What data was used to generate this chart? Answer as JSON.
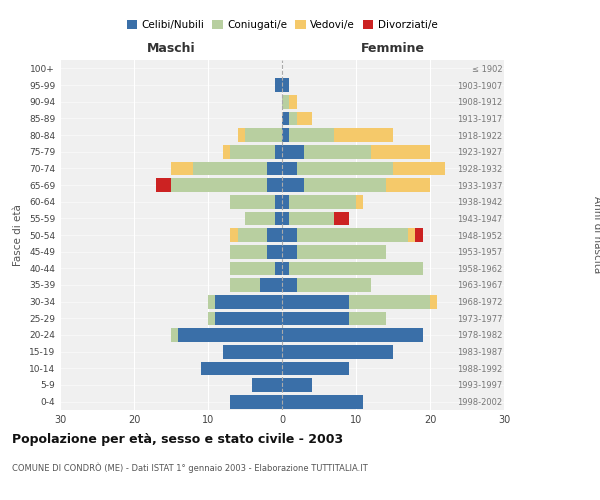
{
  "age_groups": [
    "0-4",
    "5-9",
    "10-14",
    "15-19",
    "20-24",
    "25-29",
    "30-34",
    "35-39",
    "40-44",
    "45-49",
    "50-54",
    "55-59",
    "60-64",
    "65-69",
    "70-74",
    "75-79",
    "80-84",
    "85-89",
    "90-94",
    "95-99",
    "100+"
  ],
  "birth_years": [
    "1998-2002",
    "1993-1997",
    "1988-1992",
    "1983-1987",
    "1978-1982",
    "1973-1977",
    "1968-1972",
    "1963-1967",
    "1958-1962",
    "1953-1957",
    "1948-1952",
    "1943-1947",
    "1938-1942",
    "1933-1937",
    "1928-1932",
    "1923-1927",
    "1918-1922",
    "1913-1917",
    "1908-1912",
    "1903-1907",
    "≤ 1902"
  ],
  "males": {
    "celibi": [
      7,
      4,
      11,
      8,
      14,
      9,
      9,
      3,
      1,
      2,
      2,
      1,
      1,
      2,
      2,
      1,
      0,
      0,
      0,
      1,
      0
    ],
    "coniugati": [
      0,
      0,
      0,
      0,
      1,
      1,
      1,
      4,
      6,
      5,
      4,
      4,
      6,
      13,
      10,
      6,
      5,
      0,
      0,
      0,
      0
    ],
    "vedovi": [
      0,
      0,
      0,
      0,
      0,
      0,
      0,
      0,
      0,
      0,
      1,
      0,
      0,
      0,
      3,
      1,
      1,
      0,
      0,
      0,
      0
    ],
    "divorziati": [
      0,
      0,
      0,
      0,
      0,
      0,
      0,
      0,
      0,
      0,
      0,
      0,
      0,
      2,
      0,
      0,
      0,
      0,
      0,
      0,
      0
    ]
  },
  "females": {
    "nubili": [
      11,
      4,
      9,
      15,
      19,
      9,
      9,
      2,
      1,
      2,
      2,
      1,
      1,
      3,
      2,
      3,
      1,
      1,
      0,
      1,
      0
    ],
    "coniugate": [
      0,
      0,
      0,
      0,
      0,
      5,
      11,
      10,
      18,
      12,
      15,
      6,
      9,
      11,
      13,
      9,
      6,
      1,
      1,
      0,
      0
    ],
    "vedove": [
      0,
      0,
      0,
      0,
      0,
      0,
      1,
      0,
      0,
      0,
      1,
      0,
      1,
      6,
      7,
      8,
      8,
      2,
      1,
      0,
      0
    ],
    "divorziate": [
      0,
      0,
      0,
      0,
      0,
      0,
      0,
      0,
      0,
      0,
      1,
      2,
      0,
      0,
      0,
      0,
      0,
      0,
      0,
      0,
      0
    ]
  },
  "colors": {
    "celibi": "#3a6fa8",
    "coniugati": "#b8cfa0",
    "vedovi": "#f5c96a",
    "divorziati": "#cc2222"
  },
  "title": "Popolazione per età, sesso e stato civile - 2003",
  "subtitle": "COMUNE DI CONDRÒ (ME) - Dati ISTAT 1° gennaio 2003 - Elaborazione TUTTITALIA.IT",
  "xlabel_left": "Maschi",
  "xlabel_right": "Femmine",
  "ylabel_left": "Fasce di età",
  "ylabel_right": "Anni di nascita",
  "xlim": 30,
  "background_color": "#ffffff",
  "grid_color": "#cccccc"
}
